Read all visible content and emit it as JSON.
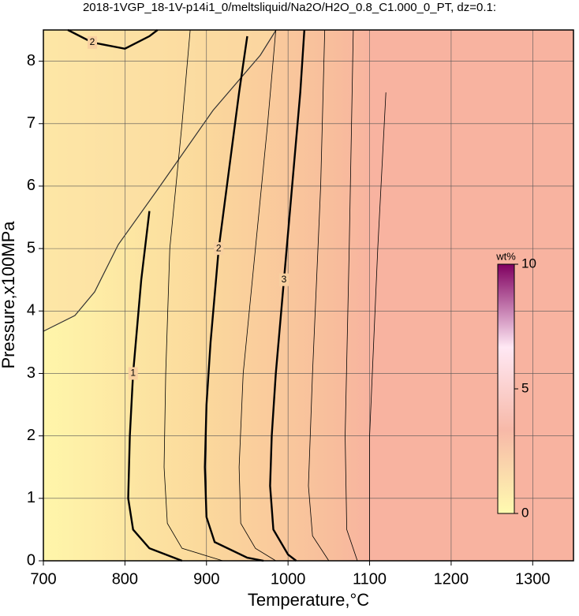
{
  "chart_data": {
    "type": "contour",
    "title": "2018-1VGP_18-1V-p14i1_0/meltsliquid/Na2O/H2O_0.8_C1.000_0_PT, dz=0.1:",
    "xlabel": "Temperature,°C",
    "ylabel": "Pressure,x100MPa",
    "xlim": [
      700,
      1350
    ],
    "ylim": [
      0,
      8.5
    ],
    "xticks": [
      700,
      800,
      900,
      1000,
      1100,
      1200,
      1300
    ],
    "yticks": [
      0,
      1,
      2,
      3,
      4,
      5,
      6,
      7,
      8
    ],
    "grid": true,
    "colorbar": {
      "label": "wt%",
      "lim": [
        0,
        10
      ],
      "ticks": [
        0,
        5,
        10
      ],
      "colors": [
        "#fffbb0",
        "#f7b9a8",
        "#ffe8f4",
        "#800060"
      ]
    },
    "contours": [
      {
        "level": 1,
        "bold": true,
        "x": [
          830,
          820,
          810,
          806,
          804,
          810,
          830,
          870
        ],
        "y": [
          5.6,
          4.5,
          3.0,
          2.0,
          1.0,
          0.5,
          0.2,
          0
        ]
      },
      {
        "level": 2,
        "bold": true,
        "x": [
          950,
          940,
          930,
          915,
          905,
          900,
          898,
          900,
          910,
          950,
          970
        ],
        "y": [
          8.4,
          7.5,
          6.5,
          5.0,
          3.5,
          2.5,
          1.5,
          0.7,
          0.3,
          0.05,
          0
        ]
      },
      {
        "level": 2,
        "bold": true,
        "x": [
          730,
          760,
          800,
          830,
          840
        ],
        "y": [
          8.5,
          8.3,
          8.2,
          8.4,
          8.5
        ]
      },
      {
        "level": 3,
        "bold": true,
        "x": [
          1020,
          1015,
          1005,
          995,
          985,
          980,
          978,
          982,
          1000,
          1010
        ],
        "y": [
          8.5,
          7.5,
          6.0,
          4.5,
          3.0,
          2.0,
          1.2,
          0.5,
          0.1,
          0
        ]
      },
      {
        "level": 1.5,
        "bold": false,
        "x": [
          880,
          870,
          855,
          850,
          848,
          852,
          870,
          920
        ],
        "y": [
          8.5,
          7,
          5,
          3,
          1.5,
          0.6,
          0.2,
          0
        ]
      },
      {
        "level": 2.5,
        "bold": false,
        "x": [
          985,
          975,
          960,
          945,
          940,
          942,
          960,
          985
        ],
        "y": [
          8.5,
          7,
          5,
          3,
          1.5,
          0.6,
          0.2,
          0
        ]
      },
      {
        "level": 3.5,
        "bold": false,
        "x": [
          1045,
          1040,
          1030,
          1025,
          1030,
          1050
        ],
        "y": [
          8.5,
          6,
          3,
          1.2,
          0.4,
          0
        ]
      },
      {
        "level": 4,
        "bold": false,
        "x": [
          1080,
          1075,
          1070,
          1072,
          1085
        ],
        "y": [
          8.5,
          5,
          2,
          0.5,
          0
        ]
      },
      {
        "level": 4.5,
        "bold": false,
        "x": [
          1120,
          1110,
          1100,
          1100
        ],
        "y": [
          7.5,
          5,
          2,
          0
        ]
      }
    ]
  }
}
